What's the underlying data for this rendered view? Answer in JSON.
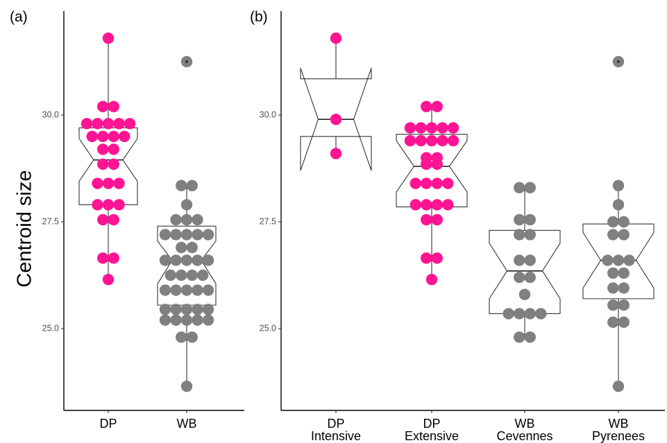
{
  "chart_data": [
    {
      "type": "boxplot-dotplot",
      "panel_label": "(a)",
      "ylabel": "Centroid size",
      "ylim": [
        23.2,
        32.3
      ],
      "yticks": [
        25.0,
        27.5,
        30.0
      ],
      "ytick_labels": [
        "25.0",
        "27.5",
        "30.0"
      ],
      "colors": {
        "DP": "#ff1493",
        "WB": "#808080"
      },
      "groups": [
        {
          "label": "DP",
          "color": "DP",
          "box": {
            "lower_whisker": 26.15,
            "q1": 27.9,
            "median": 28.95,
            "q3": 29.7,
            "upper_whisker": 31.8,
            "notch_low": 28.45,
            "notch_high": 29.45
          },
          "values": [
            31.8,
            30.2,
            30.2,
            29.8,
            29.8,
            29.8,
            29.8,
            29.8,
            29.5,
            29.5,
            29.5,
            29.5,
            29.2,
            29.2,
            28.85,
            28.85,
            28.4,
            28.4,
            28.4,
            27.9,
            27.9,
            27.9,
            27.55,
            27.55,
            26.65,
            26.65,
            26.15
          ]
        },
        {
          "label": "WB",
          "color": "WB",
          "box": {
            "lower_whisker": 23.65,
            "q1": 25.55,
            "median": 26.6,
            "q3": 27.4,
            "upper_whisker": 28.35,
            "notch_low": 26.05,
            "notch_high": 27.05
          },
          "outliers": [
            31.25
          ],
          "values": [
            31.25,
            28.35,
            28.35,
            27.9,
            27.55,
            27.55,
            27.55,
            27.2,
            27.2,
            27.2,
            27.2,
            27.2,
            26.9,
            26.9,
            26.6,
            26.6,
            26.6,
            26.6,
            26.6,
            26.25,
            26.25,
            26.25,
            26.25,
            25.9,
            25.9,
            25.9,
            25.9,
            25.9,
            25.45,
            25.45,
            25.45,
            25.45,
            25.45,
            25.2,
            25.2,
            25.2,
            25.2,
            25.2,
            24.8,
            24.8,
            23.65
          ]
        }
      ]
    },
    {
      "type": "boxplot-dotplot",
      "panel_label": "(b)",
      "ylim": [
        23.2,
        32.3
      ],
      "yticks": [
        25.0,
        27.5,
        30.0
      ],
      "ytick_labels": [
        "25.0",
        "27.5",
        "30.0"
      ],
      "colors": {
        "DP": "#ff1493",
        "WB": "#808080"
      },
      "groups": [
        {
          "label": [
            "DP",
            "Intensive"
          ],
          "color": "DP",
          "box": {
            "lower_whisker": 29.1,
            "q1": 29.5,
            "median": 29.9,
            "q3": 30.85,
            "upper_whisker": 31.8,
            "notch_low": 28.7,
            "notch_high": 31.1
          },
          "values": [
            31.8,
            29.9,
            29.1
          ]
        },
        {
          "label": [
            "DP",
            "Extensive"
          ],
          "color": "DP",
          "box": {
            "lower_whisker": 26.15,
            "q1": 27.85,
            "median": 28.8,
            "q3": 29.55,
            "upper_whisker": 30.2,
            "notch_low": 28.2,
            "notch_high": 29.4
          },
          "values": [
            30.2,
            30.2,
            29.7,
            29.7,
            29.7,
            29.7,
            29.7,
            29.4,
            29.4,
            29.4,
            29.4,
            29.4,
            29.0,
            29.0,
            28.85,
            28.85,
            28.4,
            28.4,
            28.4,
            28.4,
            27.9,
            27.9,
            27.9,
            27.9,
            27.55,
            27.55,
            26.65,
            26.65,
            26.15
          ]
        },
        {
          "label": [
            "WB",
            "Cevennes"
          ],
          "color": "WB",
          "box": {
            "lower_whisker": 24.8,
            "q1": 25.35,
            "median": 26.35,
            "q3": 27.3,
            "upper_whisker": 28.3,
            "notch_low": 25.7,
            "notch_high": 27.0
          },
          "values": [
            28.3,
            28.3,
            27.55,
            27.55,
            27.2,
            27.2,
            26.6,
            26.6,
            26.2,
            26.2,
            25.8,
            25.35,
            25.35,
            25.35,
            25.35,
            24.8,
            24.8
          ]
        },
        {
          "label": [
            "WB",
            "Pyrenees"
          ],
          "color": "WB",
          "box": {
            "lower_whisker": 23.65,
            "q1": 25.7,
            "median": 26.6,
            "q3": 27.45,
            "upper_whisker": 28.35,
            "notch_low": 25.95,
            "notch_high": 27.25
          },
          "outliers": [
            31.25
          ],
          "values": [
            31.25,
            28.35,
            27.9,
            27.5,
            27.5,
            27.2,
            27.2,
            26.6,
            26.6,
            26.6,
            26.3,
            26.3,
            25.95,
            25.95,
            25.55,
            25.55,
            25.15,
            25.15,
            23.65
          ]
        }
      ]
    }
  ]
}
